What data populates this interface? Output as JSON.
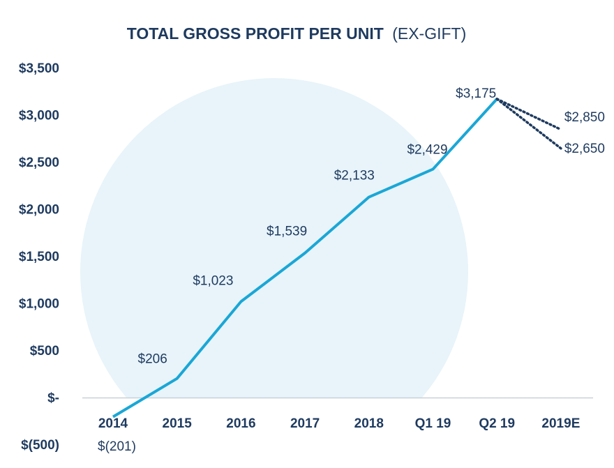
{
  "chart_data": {
    "type": "line",
    "title": "TOTAL GROSS PROFIT PER UNIT",
    "subtitle": "(EX-GIFT)",
    "categories": [
      "2014",
      "2015",
      "2016",
      "2017",
      "2018",
      "Q1 19",
      "Q2 19",
      "2019E"
    ],
    "series": [
      {
        "values": [
          -201,
          206,
          1023,
          1539,
          2133,
          2429,
          3175,
          null
        ],
        "labels": [
          "$(201)",
          "$206",
          "$1,023",
          "$1,539",
          "$2,133",
          "$2,429",
          "$3,175",
          null
        ],
        "style": "solid"
      },
      {
        "values": [
          null,
          null,
          null,
          null,
          null,
          null,
          3175,
          2850
        ],
        "labels": [
          null,
          null,
          null,
          null,
          null,
          null,
          null,
          "$2,850"
        ],
        "style": "dotted"
      },
      {
        "values": [
          null,
          null,
          null,
          null,
          null,
          null,
          3175,
          2650
        ],
        "labels": [
          null,
          null,
          null,
          null,
          null,
          null,
          null,
          "$2,650"
        ],
        "style": "dotted"
      }
    ],
    "yticks": [
      3500,
      3000,
      2500,
      2000,
      1500,
      1000,
      500,
      0,
      -500
    ],
    "ytick_labels": [
      "$3,500",
      "$3,000",
      "$2,500",
      "$2,000",
      "$1,500",
      "$1,000",
      "$500",
      "$-",
      "$(500)"
    ],
    "ylim": [
      -500,
      3500
    ],
    "grid": false,
    "colors": {
      "line": "#1aa7d6",
      "dotted": "#1e3a5f",
      "text": "#1e3a5f",
      "circle": "#e8f4fa",
      "axis": "#c8d0d8"
    }
  }
}
